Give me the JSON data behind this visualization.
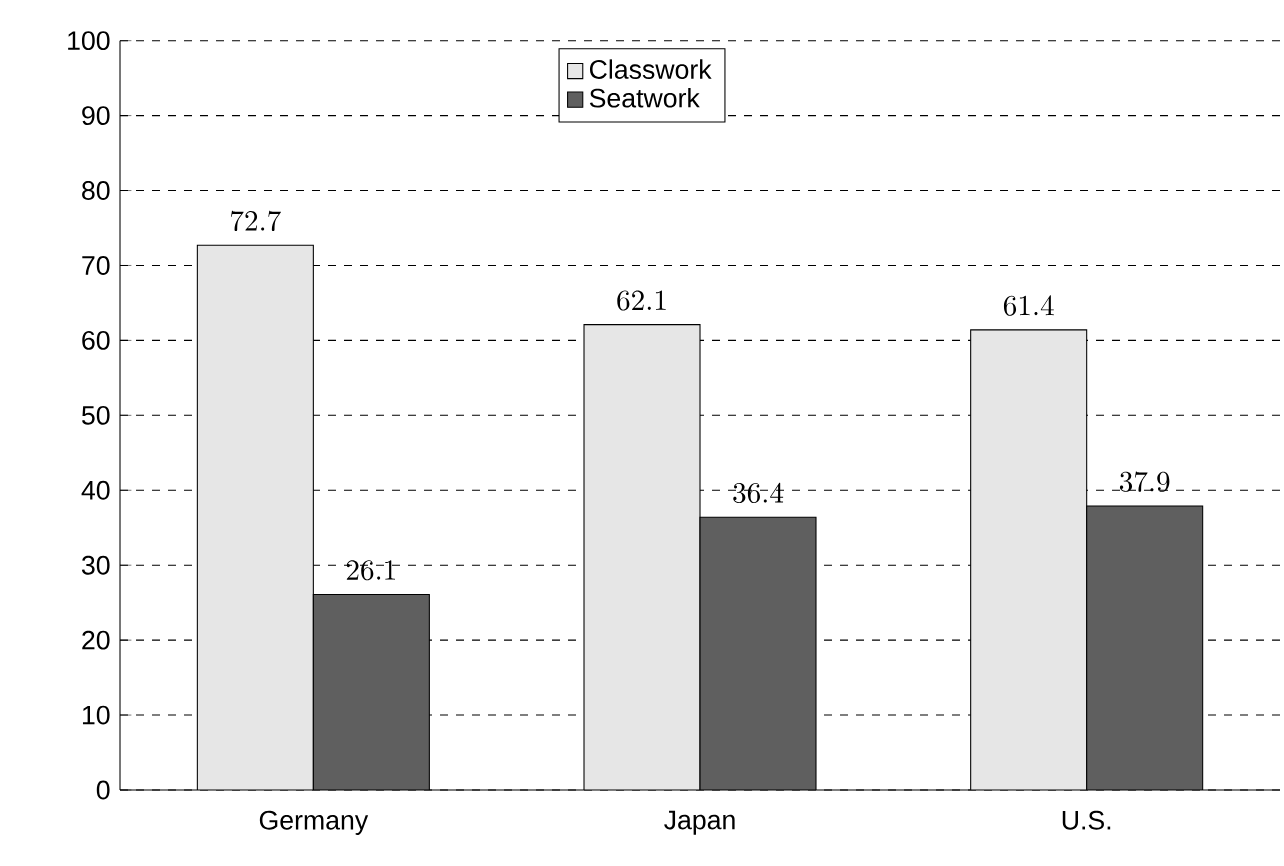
{
  "chart_data": {
    "type": "bar",
    "categories": [
      "Germany",
      "Japan",
      "U.S."
    ],
    "series": [
      {
        "name": "Classwork",
        "color": "#e6e6e6",
        "values": [
          72.7,
          62.1,
          61.4
        ]
      },
      {
        "name": "Seatwork",
        "color": "#5f5f5f",
        "values": [
          26.1,
          36.4,
          37.9
        ]
      }
    ],
    "ylim": [
      0,
      100
    ],
    "yticks": [
      0,
      10,
      20,
      30,
      40,
      50,
      60,
      70,
      80,
      90,
      100
    ],
    "grid": "y",
    "legend": "top",
    "data_labels": true
  }
}
